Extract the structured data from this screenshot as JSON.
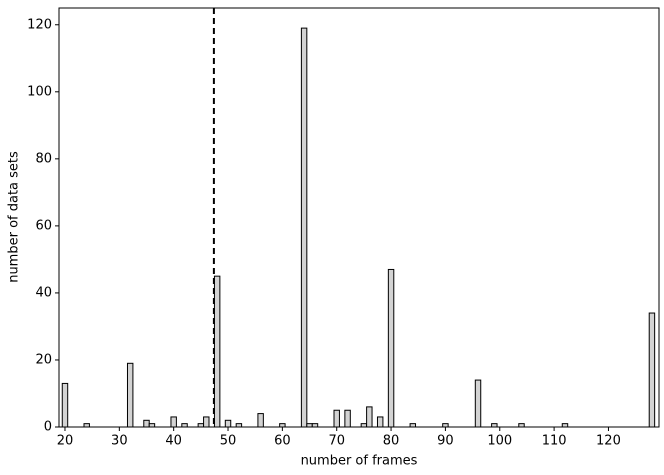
{
  "chart_data": {
    "type": "bar",
    "x_label": "number of frames",
    "y_label": "number of data sets",
    "x": [
      20,
      24,
      32,
      35,
      36,
      40,
      42,
      45,
      46,
      48,
      50,
      52,
      56,
      60,
      64,
      65,
      66,
      70,
      72,
      75,
      76,
      78,
      80,
      84,
      90,
      96,
      99,
      104,
      112,
      128
    ],
    "values": [
      13,
      1,
      19,
      2,
      1,
      3,
      1,
      1,
      3,
      45,
      2,
      1,
      4,
      1,
      119,
      1,
      1,
      5,
      5,
      1,
      6,
      3,
      47,
      1,
      1,
      14,
      1,
      1,
      1,
      34
    ],
    "color": "#d3d3d3",
    "edge_color": "#000000",
    "bar_width": 1,
    "vline": 47.4,
    "xlim": [
      18.9,
      129.3
    ],
    "xticks": [
      20,
      30,
      40,
      50,
      60,
      70,
      80,
      90,
      100,
      110,
      120
    ],
    "ylim": [
      0,
      125
    ],
    "yticks": [
      0,
      20,
      40,
      60,
      80,
      100,
      120
    ]
  }
}
